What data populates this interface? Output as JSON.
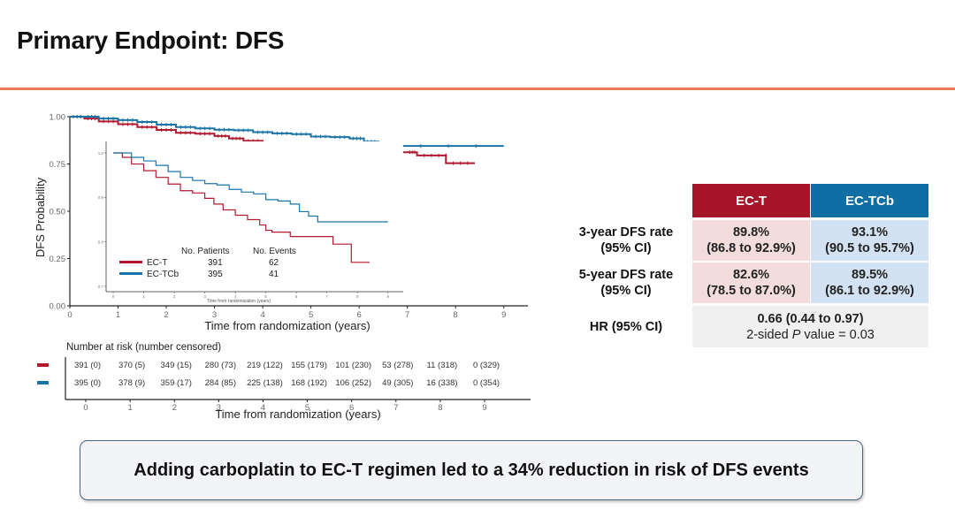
{
  "slide": {
    "title": "Primary Endpoint: DFS",
    "accent_color": "#ec7a5a",
    "callout": "Adding carboplatin to EC-T regimen led to a 34% reduction in risk of DFS events"
  },
  "colors": {
    "ec_t": "#b0192e",
    "ec_tcb": "#1a74a8"
  },
  "summary_table": {
    "headers": [
      "EC-T",
      "EC-TCb"
    ],
    "rows": [
      {
        "label_line1": "3-year DFS rate",
        "label_line2": "(95% CI)",
        "ec_t_value": "89.8%",
        "ec_t_ci": "(86.8 to 92.9%)",
        "ec_tcb_value": "93.1%",
        "ec_tcb_ci": "(90.5 to 95.7%)"
      },
      {
        "label_line1": "5-year DFS rate",
        "label_line2": "(95% CI)",
        "ec_t_value": "82.6%",
        "ec_t_ci": "(78.5 to 87.0%)",
        "ec_tcb_value": "89.5%",
        "ec_tcb_ci": "(86.1 to 92.9%)"
      }
    ],
    "hr_label": "HR (95% CI)",
    "hr_value": "0.66 (0.44 to 0.97)",
    "p_prefix": "2-sided ",
    "p_italic": "P",
    "p_suffix": " value = 0.03"
  },
  "chart_data": {
    "type": "line",
    "title": "",
    "xlabel": "Time from randomization (years)",
    "ylabel": "DFS Probability",
    "xlim": [
      0,
      9.5
    ],
    "ylim": [
      0,
      1
    ],
    "x_ticks": [
      "0",
      "1",
      "2",
      "3",
      "4",
      "5",
      "6",
      "7",
      "8",
      "9"
    ],
    "y_ticks": [
      "0.00",
      "0.25",
      "0.50",
      "0.75",
      "1.00"
    ],
    "grid": false,
    "series": [
      {
        "name": "EC-T",
        "points": [
          [
            0,
            1.0
          ],
          [
            0.3,
            0.99
          ],
          [
            0.6,
            0.975
          ],
          [
            1.0,
            0.96
          ],
          [
            1.4,
            0.945
          ],
          [
            1.8,
            0.93
          ],
          [
            2.2,
            0.915
          ],
          [
            2.6,
            0.91
          ],
          [
            3.0,
            0.898
          ],
          [
            3.3,
            0.885
          ],
          [
            3.6,
            0.872
          ],
          [
            4.0,
            0.86
          ],
          [
            4.4,
            0.85
          ],
          [
            4.8,
            0.838
          ],
          [
            5.0,
            0.826
          ],
          [
            5.2,
            0.822
          ],
          [
            5.5,
            0.822
          ],
          [
            5.8,
            0.812
          ],
          [
            6.2,
            0.812
          ],
          [
            7.0,
            0.812
          ],
          [
            7.2,
            0.795
          ],
          [
            7.8,
            0.795
          ],
          [
            7.8,
            0.754
          ],
          [
            8.4,
            0.754
          ]
        ]
      },
      {
        "name": "EC-TCb",
        "points": [
          [
            0,
            1.0
          ],
          [
            0.3,
            1.0
          ],
          [
            0.6,
            0.99
          ],
          [
            1.0,
            0.982
          ],
          [
            1.4,
            0.972
          ],
          [
            1.8,
            0.958
          ],
          [
            2.2,
            0.945
          ],
          [
            2.6,
            0.938
          ],
          [
            3.0,
            0.931
          ],
          [
            3.4,
            0.928
          ],
          [
            3.8,
            0.918
          ],
          [
            4.2,
            0.912
          ],
          [
            4.6,
            0.908
          ],
          [
            5.0,
            0.895
          ],
          [
            5.4,
            0.892
          ],
          [
            5.8,
            0.885
          ],
          [
            6.1,
            0.868
          ],
          [
            6.4,
            0.858
          ],
          [
            6.7,
            0.845
          ],
          [
            9.0,
            0.845
          ]
        ]
      }
    ],
    "inset": {
      "xlabel": "Time from randomization (years)",
      "xlim": [
        0,
        9.5
      ],
      "ylim": [
        0.7,
        1.0
      ],
      "x_ticks": [
        "0",
        "1",
        "2",
        "3",
        "4",
        "5",
        "6",
        "7",
        "8",
        "9"
      ],
      "y_ticks": [
        "0.7",
        "0.8",
        "0.9",
        "1.0"
      ]
    },
    "legend": {
      "header_patients": "No. Patients",
      "header_events": "No. Events",
      "entries": [
        {
          "name": "EC-T",
          "patients": "391",
          "events": "62"
        },
        {
          "name": "EC-TCb",
          "patients": "395",
          "events": "41"
        }
      ]
    },
    "risk_table": {
      "title": "Number at risk (number censored)",
      "xlabel": "Time from randomization (years)",
      "x_ticks": [
        "0",
        "1",
        "2",
        "3",
        "4",
        "5",
        "6",
        "7",
        "8",
        "9"
      ],
      "rows": [
        {
          "name": "EC-T",
          "values": [
            "391 (0)",
            "370 (5)",
            "349 (15)",
            "280 (73)",
            "219 (122)",
            "155 (179)",
            "101 (230)",
            "53 (278)",
            "11 (318)",
            "0 (329)"
          ]
        },
        {
          "name": "EC-TCb",
          "values": [
            "395 (0)",
            "378 (9)",
            "359 (17)",
            "284 (85)",
            "225 (138)",
            "168 (192)",
            "106 (252)",
            "49 (305)",
            "16 (338)",
            "0 (354)"
          ]
        }
      ]
    }
  }
}
